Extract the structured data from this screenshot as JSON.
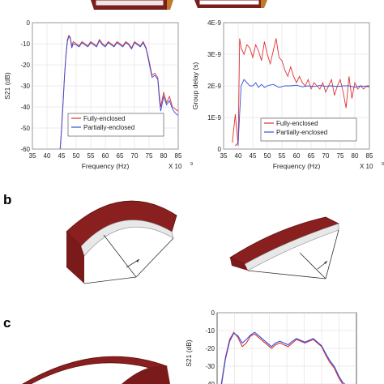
{
  "panels": {
    "b": "b",
    "c": "c"
  },
  "chart_data": [
    {
      "type": "line",
      "title": "",
      "xlabel": "Frequency (Hz)",
      "ylabel": "S21 (dB)",
      "x_multiplier": "X 10",
      "x_multiplier_exp": "9",
      "xlim": [
        35,
        85
      ],
      "ylim": [
        -60,
        0
      ],
      "x_ticks": [
        "35",
        "40",
        "45",
        "50",
        "55",
        "60",
        "65",
        "70",
        "75",
        "80",
        "85"
      ],
      "y_ticks": [
        "0",
        "-10",
        "-20",
        "-30",
        "-40",
        "-50",
        "-60"
      ],
      "grid": true,
      "legend": "bottom-left",
      "series": [
        {
          "name": "Fully-enclosed",
          "color": "#e03030",
          "x": [
            44.5,
            45,
            45.5,
            46,
            46.5,
            47,
            47.5,
            48,
            48.5,
            49,
            50,
            51,
            52,
            53,
            54,
            55,
            56,
            57,
            58,
            59,
            60,
            61,
            62,
            63,
            64,
            65,
            66,
            67,
            68,
            69,
            70,
            71,
            72,
            73,
            74,
            75,
            76,
            77,
            78,
            78.5,
            79,
            80,
            81,
            82,
            83,
            84,
            85
          ],
          "y": [
            -60,
            -50,
            -38,
            -25,
            -15,
            -8,
            -6,
            -7,
            -11,
            -9,
            -10,
            -11,
            -9,
            -10,
            -11,
            -9,
            -10,
            -11,
            -8,
            -10,
            -11,
            -9,
            -10,
            -11,
            -9,
            -10,
            -11,
            -9,
            -10,
            -12,
            -9,
            -10,
            -11,
            -9,
            -12,
            -18,
            -25,
            -24,
            -26,
            -34,
            -40,
            -33,
            -38,
            -35,
            -40,
            -41,
            -42
          ]
        },
        {
          "name": "Partially-enclosed",
          "color": "#3050e0",
          "x": [
            44.5,
            45,
            45.5,
            46,
            46.5,
            47,
            47.5,
            48,
            48.5,
            49,
            50,
            51,
            52,
            53,
            54,
            55,
            56,
            57,
            58,
            59,
            60,
            61,
            62,
            63,
            64,
            65,
            66,
            67,
            68,
            69,
            70,
            71,
            72,
            73,
            74,
            75,
            76,
            77,
            78,
            78.5,
            79,
            80,
            81,
            82,
            83,
            84,
            85
          ],
          "y": [
            -60,
            -51,
            -39,
            -26,
            -16,
            -9,
            -6.5,
            -7.5,
            -12,
            -10,
            -10.5,
            -11.5,
            -9.5,
            -10.5,
            -11.5,
            -9.5,
            -10.5,
            -11.5,
            -8.5,
            -10.5,
            -11.5,
            -9.5,
            -10.5,
            -11.5,
            -9.5,
            -10.5,
            -11.5,
            -9.5,
            -10.5,
            -12.5,
            -9.5,
            -10.5,
            -11.5,
            -9.5,
            -12.5,
            -19,
            -26,
            -25,
            -27,
            -36,
            -42,
            -35,
            -39,
            -37,
            -41,
            -43,
            -44
          ]
        }
      ]
    },
    {
      "type": "line",
      "title": "",
      "xlabel": "Frequency (Hz)",
      "ylabel": "Group delay (s)",
      "x_multiplier": "X 10",
      "x_multiplier_exp": "9",
      "xlim": [
        35,
        85
      ],
      "ylim": [
        0,
        4e-09
      ],
      "x_ticks": [
        "35",
        "40",
        "45",
        "50",
        "55",
        "60",
        "65",
        "70",
        "75",
        "80",
        "85"
      ],
      "y_ticks": [
        "4E-9",
        "3E-9",
        "2E-9",
        "1E-9",
        "0"
      ],
      "grid": true,
      "legend": "bottom-right",
      "series": [
        {
          "name": "Fully-enclosed",
          "color": "#e03030",
          "x": [
            38,
            39,
            40,
            40.5,
            41,
            42,
            43,
            44,
            45,
            46,
            47,
            48,
            49,
            50,
            51,
            52,
            53,
            54,
            55,
            56,
            57,
            58,
            59,
            60,
            61,
            62,
            63,
            64,
            65,
            66,
            67,
            68,
            69,
            70,
            71,
            72,
            73,
            74,
            75,
            76,
            77,
            78,
            79,
            80,
            81,
            82,
            83,
            84,
            85
          ],
          "y": [
            2e-10,
            1.1e-09,
            1e-10,
            3.5e-09,
            3.2e-09,
            3e-09,
            3.3e-09,
            3.2e-09,
            2.9e-09,
            3.3e-09,
            3.1e-09,
            2.8e-09,
            3.4e-09,
            3e-09,
            2.7e-09,
            3.1e-09,
            3.5e-09,
            2.9e-09,
            2.8e-09,
            2.5e-09,
            2.3e-09,
            2.6e-09,
            2.3e-09,
            2.1e-09,
            2.3e-09,
            2.1e-09,
            2e-09,
            2.2e-09,
            1.9e-09,
            2.1e-09,
            2e-09,
            1.9e-09,
            2.1e-09,
            1.8e-09,
            2e-09,
            2.2e-09,
            1.7e-09,
            2e-09,
            2.2e-09,
            1.8e-09,
            1.3e-09,
            2.3e-09,
            1.6e-09,
            2.1e-09,
            1.9e-09,
            2e-09,
            1.9e-09,
            2e-09,
            2e-09
          ]
        },
        {
          "name": "Partially-enclosed",
          "color": "#3050e0",
          "x": [
            39,
            40,
            41,
            42,
            43,
            44,
            45,
            46,
            47,
            48,
            49,
            50,
            52,
            54,
            56,
            58,
            60,
            62,
            64,
            66,
            68,
            70,
            72,
            74,
            76,
            78,
            80,
            82,
            84,
            85
          ],
          "y": [
            1e-10,
            2e-10,
            2e-09,
            2.2e-09,
            2.1e-09,
            2e-09,
            2e-09,
            2.1e-09,
            1.95e-09,
            2.05e-09,
            1.95e-09,
            2e-09,
            2.05e-09,
            1.95e-09,
            2e-09,
            2e-09,
            2.02e-09,
            1.97e-09,
            2e-09,
            1.98e-09,
            2.01e-09,
            1.99e-09,
            2e-09,
            1.98e-09,
            2e-09,
            2e-09,
            1.96e-09,
            2e-09,
            1.98e-09,
            1.97e-09
          ]
        }
      ]
    },
    {
      "type": "line",
      "title": "",
      "xlabel": "",
      "ylabel": "S21 (dB)",
      "ylim": [
        -50,
        0
      ],
      "y_ticks": [
        "0",
        "-10",
        "-20",
        "-30",
        "-40"
      ],
      "grid": true,
      "series": [
        {
          "name": "",
          "color": "#e03030",
          "x": [
            0,
            0.3,
            0.6,
            0.9,
            1.2,
            1.5,
            1.8,
            2.1,
            2.4,
            2.7,
            3.0,
            3.3,
            3.6,
            3.9,
            4.2,
            4.5,
            4.8,
            5.1,
            5.4,
            5.7,
            6.0,
            6.3,
            6.6,
            6.9,
            7.2,
            7.5,
            7.8,
            8.1,
            8.4,
            8.7,
            9.0,
            9.3,
            9.6,
            10
          ],
          "y": [
            -50,
            -40,
            -25,
            -15,
            -11,
            -14,
            -19,
            -17,
            -13,
            -12,
            -14,
            -16,
            -18,
            -20,
            -18,
            -17,
            -18,
            -19,
            -17,
            -15,
            -16,
            -17,
            -16,
            -15,
            -17,
            -19,
            -24,
            -28,
            -31,
            -36,
            -40,
            -42,
            -45,
            -48
          ]
        },
        {
          "name": "",
          "color": "#3050e0",
          "x": [
            0,
            0.3,
            0.6,
            0.9,
            1.2,
            1.5,
            1.8,
            2.1,
            2.4,
            2.7,
            3.0,
            3.3,
            3.6,
            3.9,
            4.2,
            4.5,
            4.8,
            5.1,
            5.4,
            5.7,
            6.0,
            6.3,
            6.6,
            6.9,
            7.2,
            7.5,
            7.8,
            8.1,
            8.4,
            8.7,
            9.0,
            9.3,
            9.6,
            10
          ],
          "y": [
            -50,
            -41,
            -26,
            -16,
            -11.5,
            -13,
            -17,
            -15,
            -12.5,
            -11,
            -13,
            -15,
            -17,
            -19,
            -17,
            -16,
            -17,
            -18,
            -16,
            -14.5,
            -15.5,
            -16.5,
            -15.5,
            -14.5,
            -16.5,
            -18.5,
            -23,
            -27,
            -30,
            -35,
            -39,
            -41,
            -44,
            -47
          ]
        }
      ]
    }
  ]
}
